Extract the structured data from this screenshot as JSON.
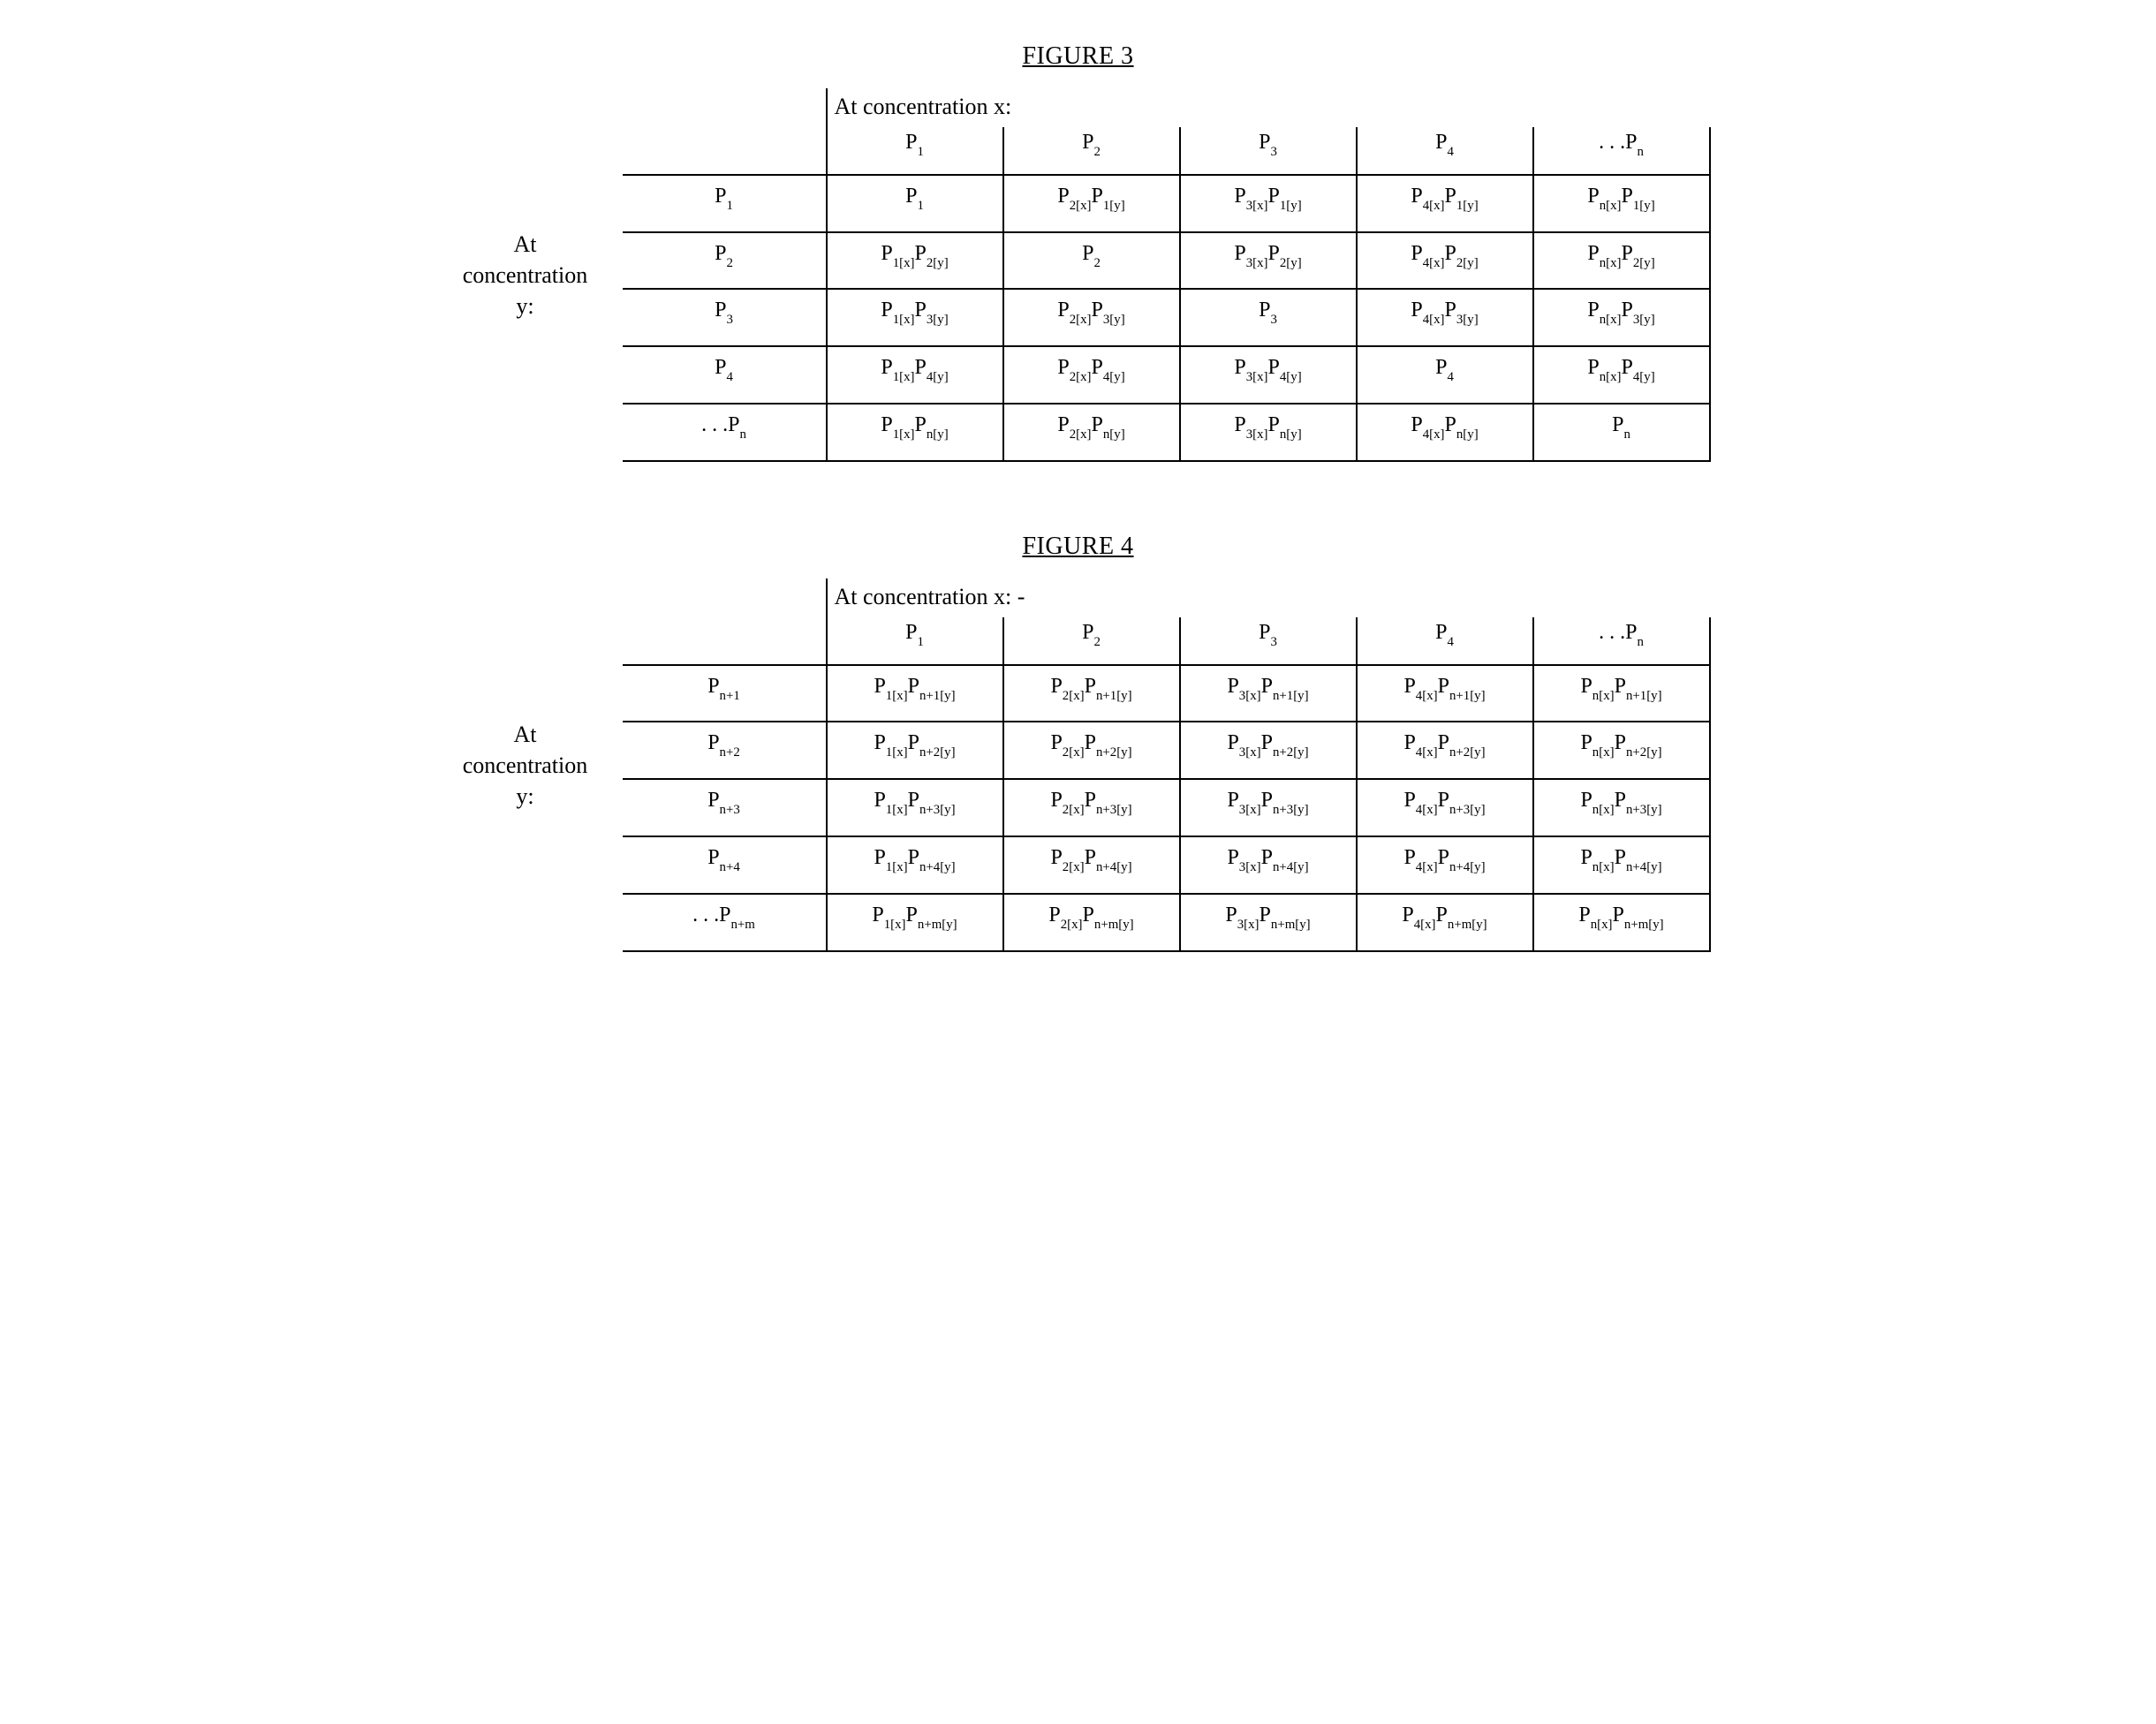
{
  "text_color": "#000000",
  "background_color": "#ffffff",
  "border_color": "#000000",
  "font_family": "Times New Roman",
  "title_fontsize_pt": 21,
  "cell_fontsize_pt": 18,
  "sub_scale": 0.62,
  "figures": [
    {
      "title": "FIGURE 3",
      "top_caption": "At concentration x:",
      "side_label_lines": [
        "At",
        "concentration",
        "y:"
      ],
      "col_headers": [
        [
          {
            "t": "P"
          },
          {
            "s": "1"
          }
        ],
        [
          {
            "t": "P"
          },
          {
            "s": "2"
          }
        ],
        [
          {
            "t": "P"
          },
          {
            "s": "3"
          }
        ],
        [
          {
            "t": "P"
          },
          {
            "s": "4"
          }
        ],
        [
          {
            "t": ". . .P"
          },
          {
            "s": "n"
          }
        ]
      ],
      "rows": [
        {
          "header": [
            {
              "t": "P"
            },
            {
              "s": "1"
            }
          ],
          "cells": [
            [
              {
                "t": "P"
              },
              {
                "s": "1"
              }
            ],
            [
              {
                "t": "P"
              },
              {
                "s": "2[x]"
              },
              {
                "t": "P"
              },
              {
                "s": "1[y]"
              }
            ],
            [
              {
                "t": "P"
              },
              {
                "s": "3[x]"
              },
              {
                "t": "P"
              },
              {
                "s": "1[y]"
              }
            ],
            [
              {
                "t": "P"
              },
              {
                "s": "4[x]"
              },
              {
                "t": "P"
              },
              {
                "s": "1[y]"
              }
            ],
            [
              {
                "t": "P"
              },
              {
                "s": "n[x]"
              },
              {
                "t": "P"
              },
              {
                "s": "1[y]"
              }
            ]
          ]
        },
        {
          "header": [
            {
              "t": "P"
            },
            {
              "s": "2"
            }
          ],
          "cells": [
            [
              {
                "t": "P"
              },
              {
                "s": "1[x]"
              },
              {
                "t": "P"
              },
              {
                "s": "2[y]"
              }
            ],
            [
              {
                "t": "P"
              },
              {
                "s": "2"
              }
            ],
            [
              {
                "t": "P"
              },
              {
                "s": "3[x]"
              },
              {
                "t": "P"
              },
              {
                "s": "2[y]"
              }
            ],
            [
              {
                "t": "P"
              },
              {
                "s": "4[x]"
              },
              {
                "t": "P"
              },
              {
                "s": "2[y]"
              }
            ],
            [
              {
                "t": "P"
              },
              {
                "s": "n[x]"
              },
              {
                "t": "P"
              },
              {
                "s": "2[y]"
              }
            ]
          ]
        },
        {
          "header": [
            {
              "t": "P"
            },
            {
              "s": "3"
            }
          ],
          "cells": [
            [
              {
                "t": "P"
              },
              {
                "s": "1[x]"
              },
              {
                "t": "P"
              },
              {
                "s": "3[y]"
              }
            ],
            [
              {
                "t": "P"
              },
              {
                "s": "2[x]"
              },
              {
                "t": "P"
              },
              {
                "s": "3[y]"
              }
            ],
            [
              {
                "t": "P"
              },
              {
                "s": "3"
              }
            ],
            [
              {
                "t": "P"
              },
              {
                "s": "4[x]"
              },
              {
                "t": "P"
              },
              {
                "s": "3[y]"
              }
            ],
            [
              {
                "t": "P"
              },
              {
                "s": "n[x]"
              },
              {
                "t": "P"
              },
              {
                "s": "3[y]"
              }
            ]
          ]
        },
        {
          "header": [
            {
              "t": "P"
            },
            {
              "s": "4"
            }
          ],
          "cells": [
            [
              {
                "t": "P"
              },
              {
                "s": "1[x]"
              },
              {
                "t": "P"
              },
              {
                "s": "4[y]"
              }
            ],
            [
              {
                "t": "P"
              },
              {
                "s": "2[x]"
              },
              {
                "t": "P"
              },
              {
                "s": "4[y]"
              }
            ],
            [
              {
                "t": "P"
              },
              {
                "s": "3[x]"
              },
              {
                "t": "P"
              },
              {
                "s": "4[y]"
              }
            ],
            [
              {
                "t": "P"
              },
              {
                "s": "4"
              }
            ],
            [
              {
                "t": "P"
              },
              {
                "s": "n[x]"
              },
              {
                "t": "P"
              },
              {
                "s": "4[y]"
              }
            ]
          ]
        },
        {
          "header": [
            {
              "t": ". . .P"
            },
            {
              "s": "n"
            }
          ],
          "cells": [
            [
              {
                "t": "P"
              },
              {
                "s": "1[x]"
              },
              {
                "t": "P"
              },
              {
                "s": "n[y]"
              }
            ],
            [
              {
                "t": "P"
              },
              {
                "s": "2[x]"
              },
              {
                "t": "P"
              },
              {
                "s": "n[y]"
              }
            ],
            [
              {
                "t": "P"
              },
              {
                "s": "3[x]"
              },
              {
                "t": "P"
              },
              {
                "s": "n[y]"
              }
            ],
            [
              {
                "t": "P"
              },
              {
                "s": "4[x]"
              },
              {
                "t": "P"
              },
              {
                "s": "n[y]"
              }
            ],
            [
              {
                "t": "P"
              },
              {
                "s": "n"
              }
            ]
          ]
        }
      ]
    },
    {
      "title": "FIGURE 4",
      "top_caption": "At concentration x: -",
      "side_label_lines": [
        "At",
        "concentration",
        "y:"
      ],
      "col_headers": [
        [
          {
            "t": "P"
          },
          {
            "s": "1"
          }
        ],
        [
          {
            "t": "P"
          },
          {
            "s": "2"
          }
        ],
        [
          {
            "t": "P"
          },
          {
            "s": "3"
          }
        ],
        [
          {
            "t": "P"
          },
          {
            "s": "4"
          }
        ],
        [
          {
            "t": ". . .P"
          },
          {
            "s": "n"
          }
        ]
      ],
      "rows": [
        {
          "header": [
            {
              "t": "P"
            },
            {
              "s": "n+1"
            }
          ],
          "cells": [
            [
              {
                "t": "P"
              },
              {
                "s": "1[x]"
              },
              {
                "t": "P"
              },
              {
                "s": "n+1[y]"
              }
            ],
            [
              {
                "t": "P"
              },
              {
                "s": "2[x]"
              },
              {
                "t": "P"
              },
              {
                "s": "n+1[y]"
              }
            ],
            [
              {
                "t": "P"
              },
              {
                "s": "3[x]"
              },
              {
                "t": "P"
              },
              {
                "s": "n+1[y]"
              }
            ],
            [
              {
                "t": "P"
              },
              {
                "s": "4[x]"
              },
              {
                "t": "P"
              },
              {
                "s": "n+1[y]"
              }
            ],
            [
              {
                "t": "P"
              },
              {
                "s": "n[x]"
              },
              {
                "t": "P"
              },
              {
                "s": "n+1[y]"
              }
            ]
          ]
        },
        {
          "header": [
            {
              "t": "P"
            },
            {
              "s": "n+2"
            }
          ],
          "cells": [
            [
              {
                "t": "P"
              },
              {
                "s": "1[x]"
              },
              {
                "t": "P"
              },
              {
                "s": "n+2[y]"
              }
            ],
            [
              {
                "t": "P"
              },
              {
                "s": "2[x]"
              },
              {
                "t": "P"
              },
              {
                "s": "n+2[y]"
              }
            ],
            [
              {
                "t": "P"
              },
              {
                "s": "3[x]"
              },
              {
                "t": "P"
              },
              {
                "s": "n+2[y]"
              }
            ],
            [
              {
                "t": "P"
              },
              {
                "s": "4[x]"
              },
              {
                "t": "P"
              },
              {
                "s": "n+2[y]"
              }
            ],
            [
              {
                "t": "P"
              },
              {
                "s": "n[x]"
              },
              {
                "t": "P"
              },
              {
                "s": "n+2[y]"
              }
            ]
          ]
        },
        {
          "header": [
            {
              "t": "P"
            },
            {
              "s": "n+3"
            }
          ],
          "cells": [
            [
              {
                "t": "P"
              },
              {
                "s": "1[x]"
              },
              {
                "t": "P"
              },
              {
                "s": "n+3[y]"
              }
            ],
            [
              {
                "t": "P"
              },
              {
                "s": "2[x]"
              },
              {
                "t": "P"
              },
              {
                "s": "n+3[y]"
              }
            ],
            [
              {
                "t": "P"
              },
              {
                "s": "3[x]"
              },
              {
                "t": "P"
              },
              {
                "s": "n+3[y]"
              }
            ],
            [
              {
                "t": "P"
              },
              {
                "s": "4[x]"
              },
              {
                "t": "P"
              },
              {
                "s": "n+3[y]"
              }
            ],
            [
              {
                "t": "P"
              },
              {
                "s": "n[x]"
              },
              {
                "t": "P"
              },
              {
                "s": "n+3[y]"
              }
            ]
          ]
        },
        {
          "header": [
            {
              "t": "P"
            },
            {
              "s": "n+4"
            }
          ],
          "cells": [
            [
              {
                "t": "P"
              },
              {
                "s": "1[x]"
              },
              {
                "t": "P"
              },
              {
                "s": "n+4[y]"
              }
            ],
            [
              {
                "t": "P"
              },
              {
                "s": "2[x]"
              },
              {
                "t": "P"
              },
              {
                "s": "n+4[y]"
              }
            ],
            [
              {
                "t": "P"
              },
              {
                "s": "3[x]"
              },
              {
                "t": "P"
              },
              {
                "s": "n+4[y]"
              }
            ],
            [
              {
                "t": "P"
              },
              {
                "s": "4[x]"
              },
              {
                "t": "P"
              },
              {
                "s": "n+4[y]"
              }
            ],
            [
              {
                "t": "P"
              },
              {
                "s": "n[x]"
              },
              {
                "t": "P"
              },
              {
                "s": "n+4[y]"
              }
            ]
          ]
        },
        {
          "header": [
            {
              "t": ". . .P"
            },
            {
              "s": "n+m"
            }
          ],
          "cells": [
            [
              {
                "t": "P"
              },
              {
                "s": "1[x]"
              },
              {
                "t": "P"
              },
              {
                "s": "n+m[y]"
              }
            ],
            [
              {
                "t": "P"
              },
              {
                "s": "2[x]"
              },
              {
                "t": "P"
              },
              {
                "s": "n+m[y]"
              }
            ],
            [
              {
                "t": "P"
              },
              {
                "s": "3[x]"
              },
              {
                "t": "P"
              },
              {
                "s": "n+m[y]"
              }
            ],
            [
              {
                "t": "P"
              },
              {
                "s": "4[x]"
              },
              {
                "t": "P"
              },
              {
                "s": "n+m[y]"
              }
            ],
            [
              {
                "t": "P"
              },
              {
                "s": "n[x]"
              },
              {
                "t": "P"
              },
              {
                "s": "n+m[y]"
              }
            ]
          ]
        }
      ]
    }
  ]
}
